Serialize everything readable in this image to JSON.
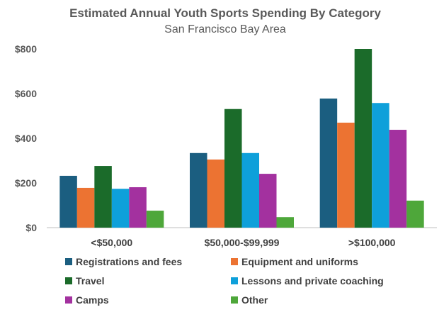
{
  "chart_data": {
    "type": "bar",
    "title": "Estimated Annual Youth Sports Spending By Category",
    "subtitle": "San Francisco Bay Area",
    "xlabel": "",
    "ylabel": "",
    "ylim": [
      0,
      800
    ],
    "yticks": [
      0,
      200,
      400,
      600,
      800
    ],
    "ytick_labels": [
      "$0",
      "$200",
      "$400",
      "$600",
      "$800"
    ],
    "categories": [
      "<$50,000",
      "$50,000-$99,999",
      ">$100,000"
    ],
    "legend_position": "bottom",
    "grid": false,
    "series": [
      {
        "name": "Registrations and fees",
        "color": "#1b5e80",
        "values": [
          232,
          334,
          578
        ]
      },
      {
        "name": "Equipment and uniforms",
        "color": "#ec7332",
        "values": [
          178,
          305,
          470
        ]
      },
      {
        "name": "Travel",
        "color": "#1b6b2a",
        "values": [
          276,
          531,
          800
        ]
      },
      {
        "name": "Lessons and private coaching",
        "color": "#0ea0da",
        "values": [
          174,
          334,
          558
        ]
      },
      {
        "name": "Camps",
        "color": "#a3319f",
        "values": [
          181,
          241,
          438
        ]
      },
      {
        "name": "Other",
        "color": "#4ea73a",
        "values": [
          76,
          47,
          121
        ]
      }
    ]
  }
}
